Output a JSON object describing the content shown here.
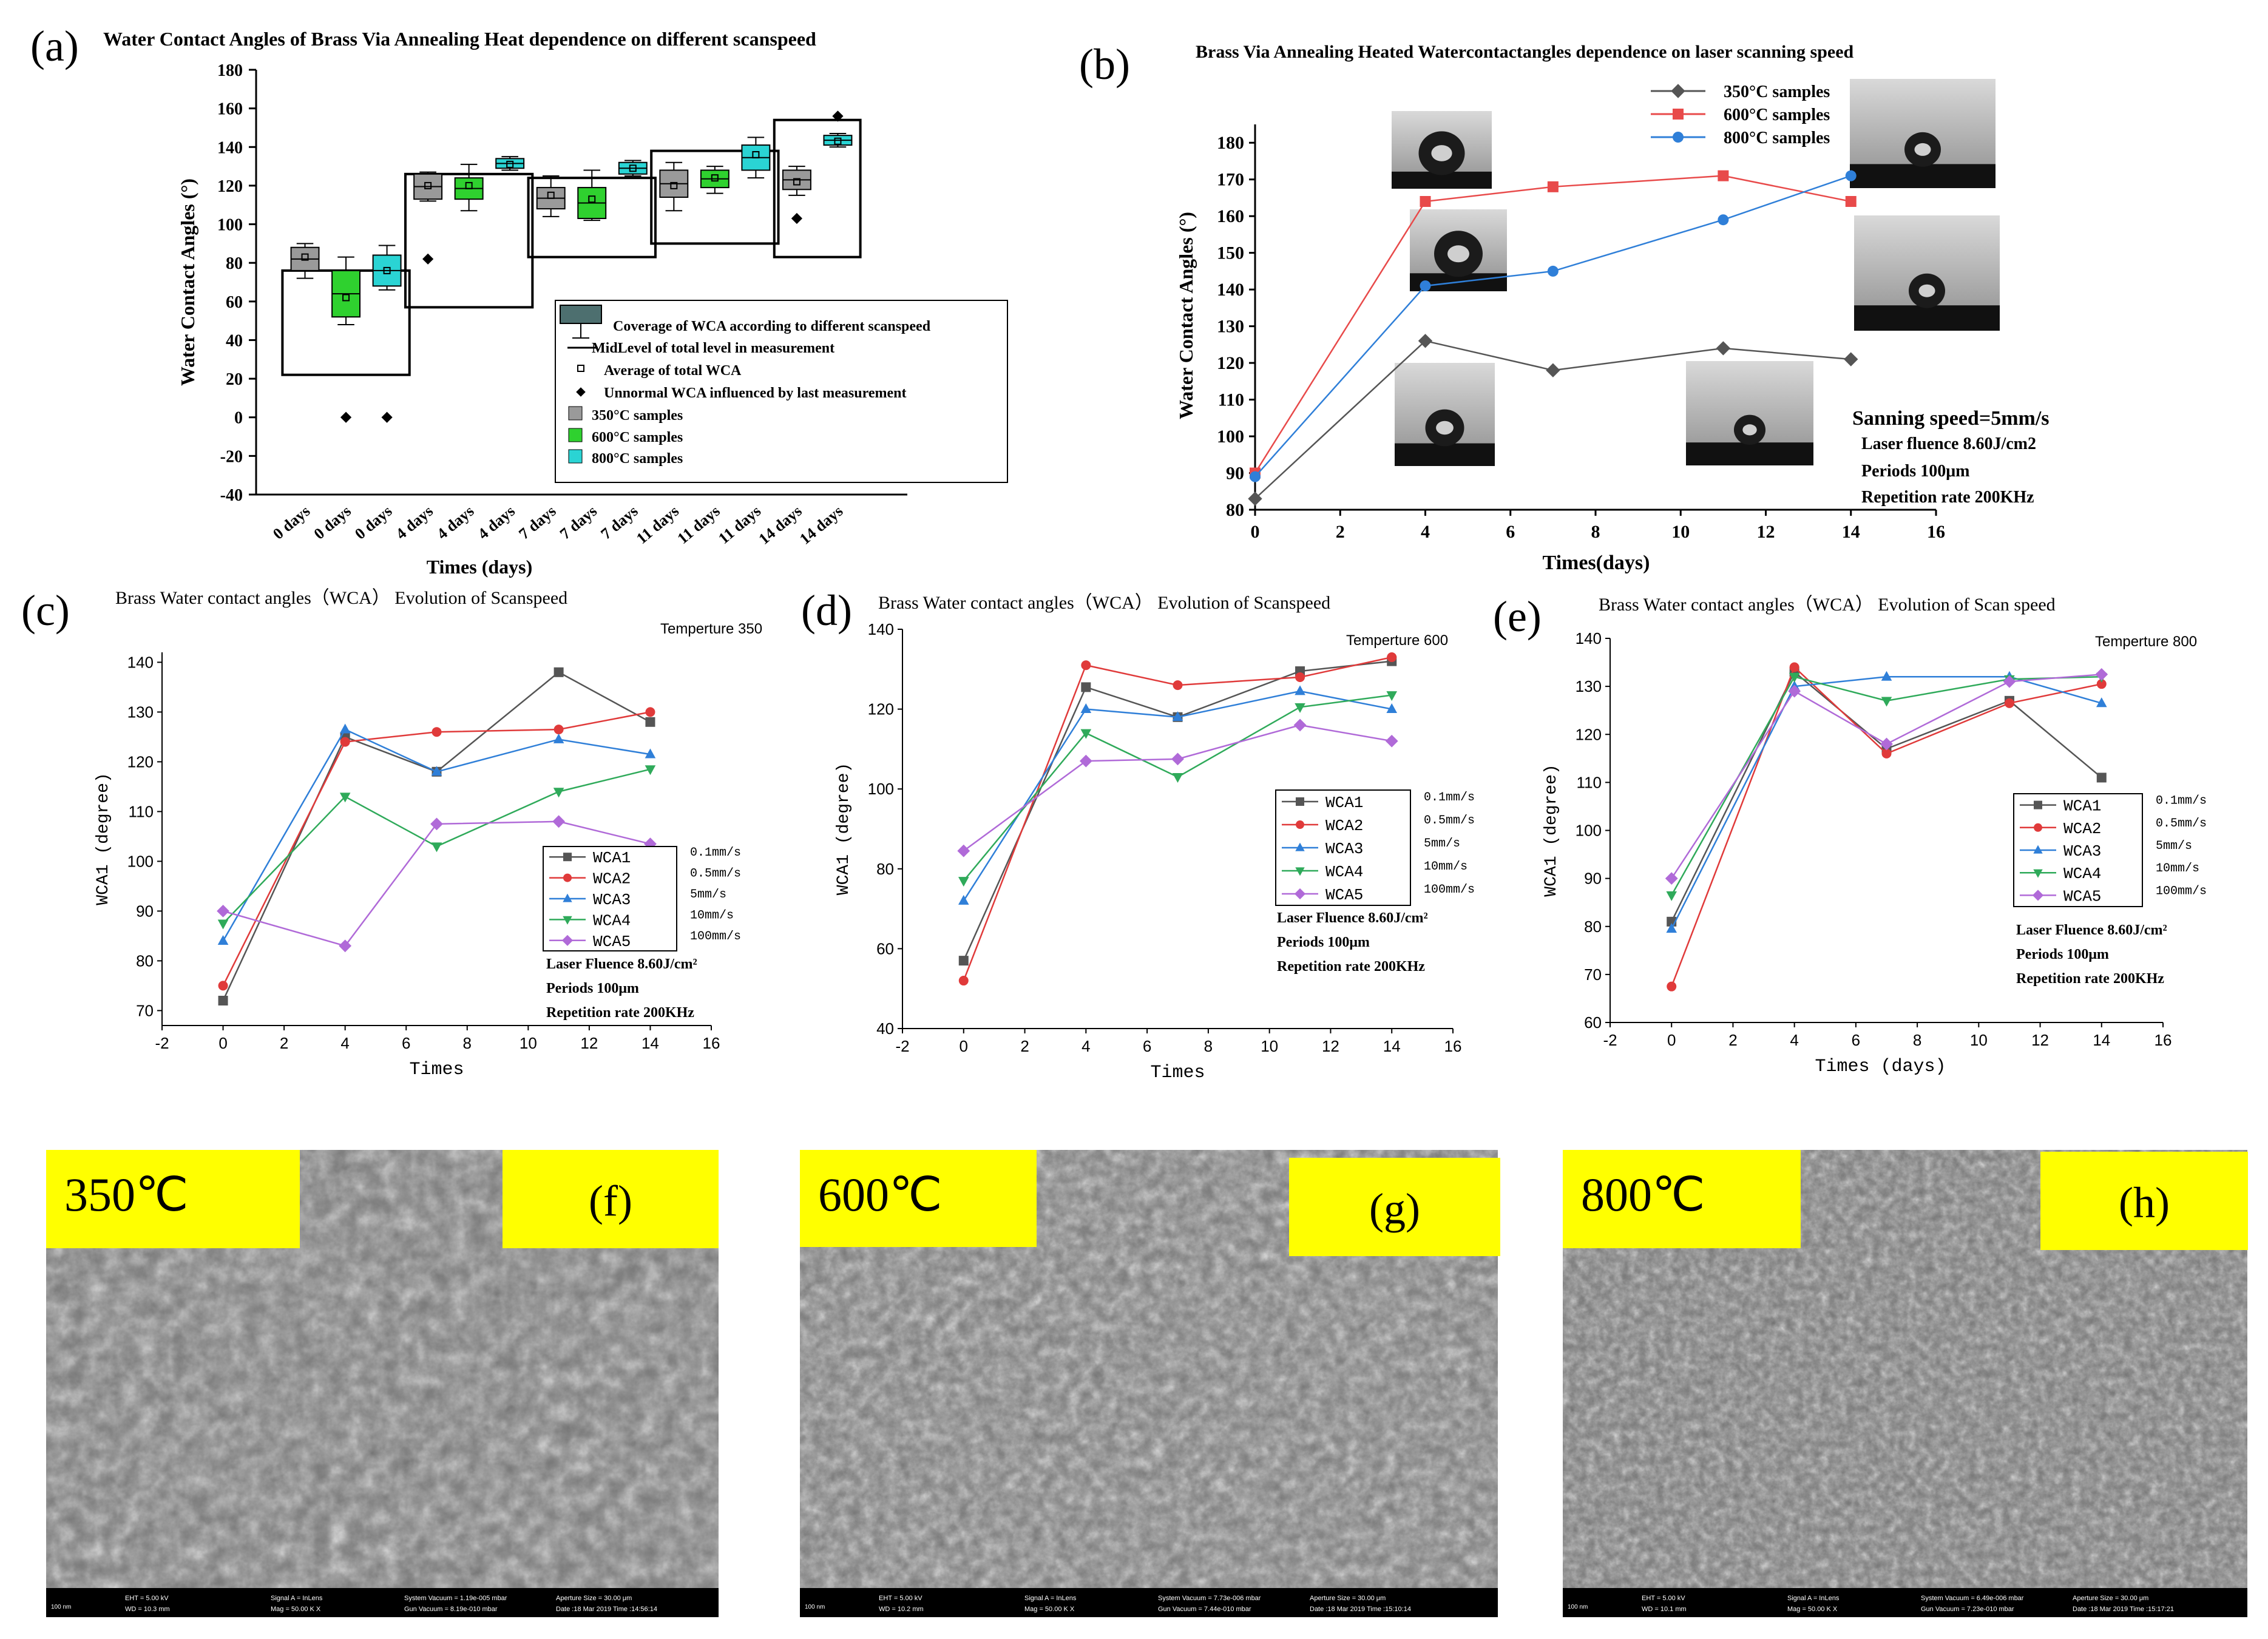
{
  "figure": {
    "colors": {
      "c350": "#9a9a9a",
      "c600": "#2fd12f",
      "c800": "#2ad4d4",
      "s350": "#555555",
      "s600": "#e84a4a",
      "s800": "#2f7fd8",
      "wca1": "#555555",
      "wca2": "#e03a3a",
      "wca3": "#2f7fd8",
      "wca4": "#2faa5a",
      "wca5": "#b06ad8",
      "semLabel": "#ffff00"
    }
  },
  "chart_data": [
    {
      "panel": "a",
      "panel_label": "(a)",
      "type": "box",
      "title": "Water Contact Angles  of  Brass Via Annealing Heat  dependence on different scanspeed",
      "xlabel": "Times  (days)",
      "ylabel": "Water Contact Angles (°)",
      "ylim": [
        -40,
        180
      ],
      "yticks": [
        "180",
        "160",
        "140",
        "120",
        "100",
        "80",
        "60",
        "40",
        "20",
        "0",
        "-20",
        "-40"
      ],
      "categories": [
        "0 days",
        "0 days",
        "0 days",
        "4 days",
        "4 days",
        "4 days",
        "7 days",
        "7 days",
        "7 days",
        "11 days",
        "11 days",
        "11 days",
        "14 days",
        "14 days"
      ],
      "boxes": [
        {
          "cat": 0,
          "series": "350",
          "q1": 76,
          "q3": 88,
          "min": 72,
          "max": 90,
          "mean": 83
        },
        {
          "cat": 1,
          "series": "600",
          "q1": 52,
          "q3": 76,
          "min": 48,
          "max": 83,
          "mean": 62
        },
        {
          "cat": 2,
          "series": "800",
          "q1": 68,
          "q3": 84,
          "min": 66,
          "max": 89,
          "mean": 76
        },
        {
          "cat": 3,
          "series": "350",
          "q1": 113,
          "q3": 126,
          "min": 112,
          "max": 127,
          "mean": 120
        },
        {
          "cat": 4,
          "series": "600",
          "q1": 113,
          "q3": 124,
          "min": 107,
          "max": 131,
          "mean": 120
        },
        {
          "cat": 5,
          "series": "800",
          "q1": 129,
          "q3": 134,
          "min": 128,
          "max": 135,
          "mean": 131
        },
        {
          "cat": 6,
          "series": "350",
          "q1": 108,
          "q3": 119,
          "min": 104,
          "max": 125,
          "mean": 115
        },
        {
          "cat": 7,
          "series": "600",
          "q1": 103,
          "q3": 119,
          "min": 102,
          "max": 128,
          "mean": 113
        },
        {
          "cat": 8,
          "series": "800",
          "q1": 126,
          "q3": 132,
          "min": 125,
          "max": 133,
          "mean": 129
        },
        {
          "cat": 9,
          "series": "350",
          "q1": 114,
          "q3": 128,
          "min": 107,
          "max": 132,
          "mean": 120
        },
        {
          "cat": 10,
          "series": "600",
          "q1": 119,
          "q3": 128,
          "min": 116,
          "max": 130,
          "mean": 124
        },
        {
          "cat": 11,
          "series": "800",
          "q1": 128,
          "q3": 141,
          "min": 124,
          "max": 145,
          "mean": 136
        },
        {
          "cat": 12,
          "series": "350",
          "q1": 118,
          "q3": 128,
          "min": 115,
          "max": 130,
          "mean": 122
        },
        {
          "cat": 13,
          "series": "800",
          "q1": 141,
          "q3": 146,
          "min": 140,
          "max": 147,
          "mean": 143
        }
      ],
      "outliers": [
        {
          "cat": 1,
          "value": 0
        },
        {
          "cat": 2,
          "value": 0
        },
        {
          "cat": 3,
          "value": 82
        },
        {
          "cat": 12,
          "value": 103
        },
        {
          "cat": 13,
          "value": 156
        }
      ],
      "group_frames": [
        {
          "from": 0,
          "to": 2,
          "low": 22,
          "high": 76
        },
        {
          "from": 3,
          "to": 5,
          "low": 57,
          "high": 126
        },
        {
          "from": 6,
          "to": 8,
          "low": 83,
          "high": 124
        },
        {
          "from": 9,
          "to": 11,
          "low": 90,
          "high": 138
        },
        {
          "from": 12,
          "to": 13,
          "low": 83,
          "high": 154
        }
      ],
      "legend": [
        "Coverage of WCA according to different  scanspeed",
        "MidLevel of total level in measurement",
        "Average of total WCA",
        "Unnormal WCA influenced by last measurement",
        "350°C samples",
        "600°C samples",
        "800°C samples"
      ]
    },
    {
      "panel": "b",
      "panel_label": "(b)",
      "type": "line",
      "title": "Brass Via Annealing Heated Watercontactangles dependence on laser scanning speed",
      "xlabel": "Times(days)",
      "ylabel": "Water Contact Angles (°)",
      "xlim": [
        0,
        16
      ],
      "ylim": [
        80,
        185
      ],
      "xticks": [
        "0",
        "2",
        "4",
        "6",
        "8",
        "10",
        "12",
        "14",
        "16"
      ],
      "yticks": [
        "80",
        "90",
        "100",
        "110",
        "120",
        "130",
        "140",
        "150",
        "160",
        "170",
        "180"
      ],
      "series": [
        {
          "name": "350°C samples",
          "x": [
            0,
            4,
            7,
            11,
            14
          ],
          "y": [
            83,
            126,
            118,
            124,
            121
          ]
        },
        {
          "name": "600°C samples",
          "x": [
            0,
            4,
            7,
            11,
            14
          ],
          "y": [
            90,
            164,
            168,
            171,
            164
          ]
        },
        {
          "name": "800°C samples",
          "x": [
            0,
            4,
            7,
            11,
            14
          ],
          "y": [
            89,
            141,
            145,
            159,
            171
          ]
        }
      ],
      "annotation": [
        "Sanning speed=5mm/s",
        "Laser fluence 8.60J/cm2",
        "Periods 100μm",
        "Repetition rate 200KHz"
      ]
    },
    {
      "panel": "c",
      "panel_label": "(c)",
      "type": "line",
      "title": "Brass Water contact angles（WCA） Evolution of Scanspeed",
      "subtitle": "Temperture 350",
      "xlabel": "Times",
      "ylabel": "WCA1 (degree)",
      "xlim": [
        -2,
        16
      ],
      "ylim": [
        67,
        142
      ],
      "xticks": [
        "-2",
        "0",
        "2",
        "4",
        "6",
        "8",
        "10",
        "12",
        "14",
        "16"
      ],
      "yticks": [
        "70",
        "80",
        "90",
        "100",
        "110",
        "120",
        "130",
        "140"
      ],
      "series": [
        {
          "name": "WCA1",
          "speed": "0.1mm/s",
          "x": [
            0,
            4,
            7,
            11,
            14
          ],
          "y": [
            72,
            125,
            118,
            138,
            128
          ]
        },
        {
          "name": "WCA2",
          "speed": "0.5mm/s",
          "x": [
            0,
            4,
            7,
            11,
            14
          ],
          "y": [
            75,
            124,
            126,
            126.5,
            130
          ]
        },
        {
          "name": "WCA3",
          "speed": "5mm/s",
          "x": [
            0,
            4,
            7,
            11,
            14
          ],
          "y": [
            84,
            126.5,
            118,
            124.5,
            121.5
          ]
        },
        {
          "name": "WCA4",
          "speed": "10mm/s",
          "x": [
            0,
            4,
            7,
            11,
            14
          ],
          "y": [
            87.5,
            113,
            103,
            114,
            118.5
          ]
        },
        {
          "name": "WCA5",
          "speed": "100mm/s",
          "x": [
            0,
            4,
            7,
            11,
            14
          ],
          "y": [
            90,
            83,
            107.5,
            108,
            103.5
          ]
        }
      ],
      "annotation": [
        "Laser Fluence 8.60J/cm²",
        "Periods 100μm",
        "Repetition rate 200KHz"
      ]
    },
    {
      "panel": "d",
      "panel_label": "(d)",
      "type": "line",
      "title": "Brass Water contact angles（WCA） Evolution of Scanspeed",
      "subtitle": "Temperture 600",
      "xlabel": "Times",
      "ylabel": "WCA1 (degree)",
      "xlim": [
        -2,
        16
      ],
      "ylim": [
        40,
        140
      ],
      "xticks": [
        "-2",
        "0",
        "2",
        "4",
        "6",
        "8",
        "10",
        "12",
        "14",
        "16"
      ],
      "yticks": [
        "40",
        "60",
        "80",
        "100",
        "120",
        "140"
      ],
      "series": [
        {
          "name": "WCA1",
          "speed": "0.1mm/s",
          "x": [
            0,
            4,
            7,
            11,
            14
          ],
          "y": [
            57,
            125.5,
            118,
            129.5,
            132
          ]
        },
        {
          "name": "WCA2",
          "speed": "0.5mm/s",
          "x": [
            0,
            4,
            7,
            11,
            14
          ],
          "y": [
            52,
            131,
            126,
            128,
            133
          ]
        },
        {
          "name": "WCA3",
          "speed": "5mm/s",
          "x": [
            0,
            4,
            7,
            11,
            14
          ],
          "y": [
            72,
            120,
            118,
            124.5,
            120
          ]
        },
        {
          "name": "WCA4",
          "speed": "10mm/s",
          "x": [
            0,
            4,
            7,
            11,
            14
          ],
          "y": [
            77,
            114,
            103,
            120.5,
            123.5
          ]
        },
        {
          "name": "WCA5",
          "speed": "100mm/s",
          "x": [
            0,
            4,
            7,
            11,
            14
          ],
          "y": [
            84.5,
            107,
            107.5,
            116,
            112
          ]
        }
      ],
      "annotation": [
        "Laser Fluence 8.60J/cm²",
        "Periods 100μm",
        "Repetition rate 200KHz"
      ]
    },
    {
      "panel": "e",
      "panel_label": "(e)",
      "type": "line",
      "title": "Brass Water contact angles（WCA） Evolution of Scan speed",
      "subtitle": "Temperture 800",
      "xlabel": "Times (days)",
      "ylabel": "WCA1 (degree)",
      "xlim": [
        -2,
        16
      ],
      "ylim": [
        60,
        140
      ],
      "xticks": [
        "-2",
        "0",
        "2",
        "4",
        "6",
        "8",
        "10",
        "12",
        "14",
        "16"
      ],
      "yticks": [
        "60",
        "70",
        "80",
        "90",
        "100",
        "110",
        "120",
        "130",
        "140"
      ],
      "series": [
        {
          "name": "WCA1",
          "speed": "0.1mm/s",
          "x": [
            0,
            4,
            7,
            11,
            14
          ],
          "y": [
            81,
            133,
            117,
            127,
            111
          ]
        },
        {
          "name": "WCA2",
          "speed": "0.5mm/s",
          "x": [
            0,
            4,
            7,
            11,
            14
          ],
          "y": [
            67.5,
            134,
            116,
            126.5,
            130.5
          ]
        },
        {
          "name": "WCA3",
          "speed": "5mm/s",
          "x": [
            0,
            4,
            7,
            11,
            14
          ],
          "y": [
            79.5,
            130,
            132,
            132,
            126.5
          ]
        },
        {
          "name": "WCA4",
          "speed": "10mm/s",
          "x": [
            0,
            4,
            7,
            11,
            14
          ],
          "y": [
            86.5,
            132,
            127,
            131.5,
            132
          ]
        },
        {
          "name": "WCA5",
          "speed": "100mm/s",
          "x": [
            0,
            4,
            7,
            11,
            14
          ],
          "y": [
            90,
            129,
            118,
            131,
            132.5
          ]
        }
      ],
      "annotation": [
        "Laser Fluence 8.60J/cm²",
        "Periods 100μm",
        "Repetition rate 200KHz"
      ]
    }
  ],
  "sem": [
    {
      "panel": "f",
      "temp": "350℃",
      "label": "(f)",
      "info_left": "EHT = 5.00 kV\nWD = 10.3 mm",
      "info_mid": "Signal A = InLens\nMag = 50.00 K X",
      "info_right": "System Vacuum = 1.19e-005 mbar\nGun Vacuum = 8.19e-010 mbar",
      "info_far": "Aperture Size = 30.00 μm\nDate :18 Mar 2019 Time :14:56:14"
    },
    {
      "panel": "g",
      "temp": "600℃",
      "label": "(g)",
      "info_left": "EHT = 5.00 kV\nWD = 10.2 mm",
      "info_mid": "Signal A = InLens\nMag = 50.00 K X",
      "info_right": "System Vacuum = 7.73e-006 mbar\nGun Vacuum = 7.44e-010 mbar",
      "info_far": "Aperture Size = 30.00 μm\nDate :18 Mar 2019 Time :15:10:14"
    },
    {
      "panel": "h",
      "temp": "800℃",
      "label": "(h)",
      "info_left": "EHT = 5.00 kV\nWD = 10.1 mm",
      "info_mid": "Signal A = InLens\nMag = 50.00 K X",
      "info_right": "System Vacuum = 6.49e-006 mbar\nGun Vacuum = 7.23e-010 mbar",
      "info_far": "Aperture Size = 30.00 μm\nDate :18 Mar 2019 Time :15:17:21"
    }
  ],
  "scale_label": "100 nm"
}
